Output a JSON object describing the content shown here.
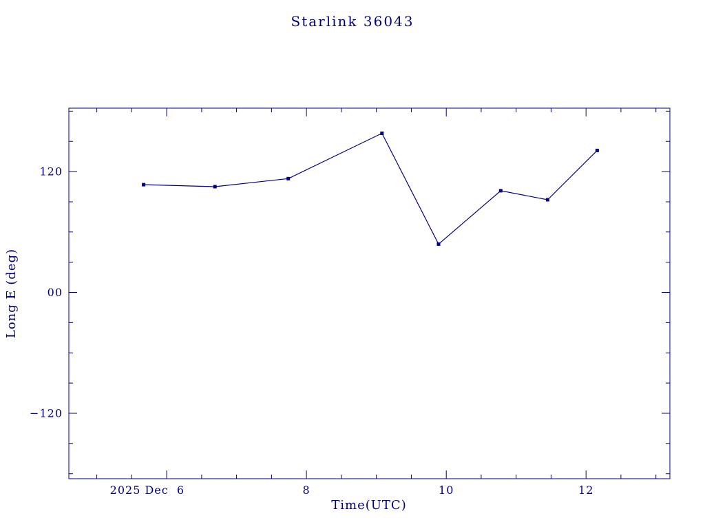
{
  "window": {
    "background": "#ffffff"
  },
  "chart": {
    "accent_color": "#000080"
  },
  "chart_data": {
    "type": "line",
    "title": "Starlink 36043",
    "xlabel": "Time(UTC)",
    "ylabel": "Long E (deg)",
    "x_unit": "day of month, 2025 Dec, UTC",
    "y_unit": "degrees longitude East",
    "x": [
      5.67,
      6.69,
      7.74,
      9.08,
      9.89,
      10.78,
      11.45,
      12.16
    ],
    "y": [
      107,
      105,
      113,
      158,
      48,
      101,
      92,
      141
    ],
    "xlim": [
      4.6,
      13.2
    ],
    "ylim": [
      -185,
      183
    ],
    "x_major_ticks": [
      6,
      8,
      10,
      12
    ],
    "x_tick_labels": [
      "2025 Dec  6",
      "8",
      "10",
      "12"
    ],
    "x_minor_step": 0.5,
    "y_major_ticks": [
      120,
      0,
      -120
    ],
    "y_tick_labels": [
      "120",
      "00",
      "−120"
    ],
    "y_minor_step": 30,
    "marker": "filled-square",
    "line_color": "#000080",
    "background_color": "#ffffff",
    "grid": false,
    "legend": "none",
    "frame": "box-with-inward-ticks"
  }
}
